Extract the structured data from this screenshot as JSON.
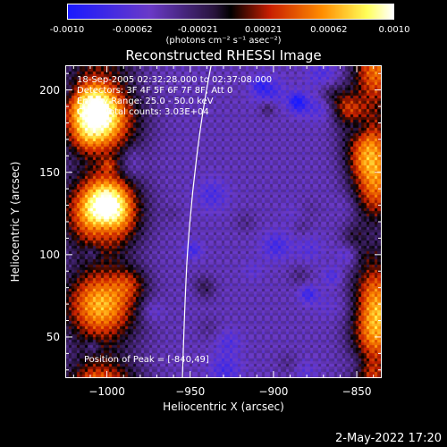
{
  "colorbar": {
    "ticks": [
      "-0.0010",
      "-0.00062",
      "-0.00021",
      "0.00021",
      "0.00062",
      "0.0010"
    ],
    "unit": "(photons cm⁻² s⁻¹ asec⁻²)"
  },
  "title": "Reconstructed RHESSI Image",
  "info": {
    "time": "18-Sep-2005 02:32:28.000 to 02:37:08.000",
    "detectors": "Detectors: 3F 4F 5F 6F 7F 8F, Att 0",
    "energy": "Energy Range: 25.0 - 50.0 keV",
    "clean": "Clean    Total counts: 3.03E+04",
    "peak": "Position of Peak = [-840,49]"
  },
  "timestamp": "2-May-2022 17:20",
  "chart_data": {
    "type": "heatmap",
    "title": "Reconstructed RHESSI Image",
    "xlabel": "Heliocentric X (arcsec)",
    "ylabel": "Heliocentric Y (arcsec)",
    "xlim": [
      -1025,
      -835
    ],
    "ylim": [
      25,
      215
    ],
    "x_ticks": [
      -1000,
      -950,
      -900,
      -850
    ],
    "x_tick_labels": [
      "−1000",
      "−950",
      "−900",
      "−850"
    ],
    "y_ticks": [
      50,
      100,
      150,
      200
    ],
    "y_tick_labels": [
      "50",
      "100",
      "150",
      "200"
    ],
    "colorbar_range": [
      -0.001,
      0.001
    ],
    "peak_position": [
      -840,
      49
    ],
    "bright_regions": [
      {
        "x": -1000,
        "y": 130
      },
      {
        "x": -1010,
        "y": 190
      },
      {
        "x": -840,
        "y": 50
      },
      {
        "x": -845,
        "y": 170
      }
    ]
  },
  "colors": {
    "background": "#000000",
    "colormap": [
      "#1a1aff",
      "#5a3ac8",
      "#6a3ab8",
      "#000000",
      "#c81e00",
      "#ff8c00",
      "#ffff50",
      "#ffffff"
    ]
  }
}
